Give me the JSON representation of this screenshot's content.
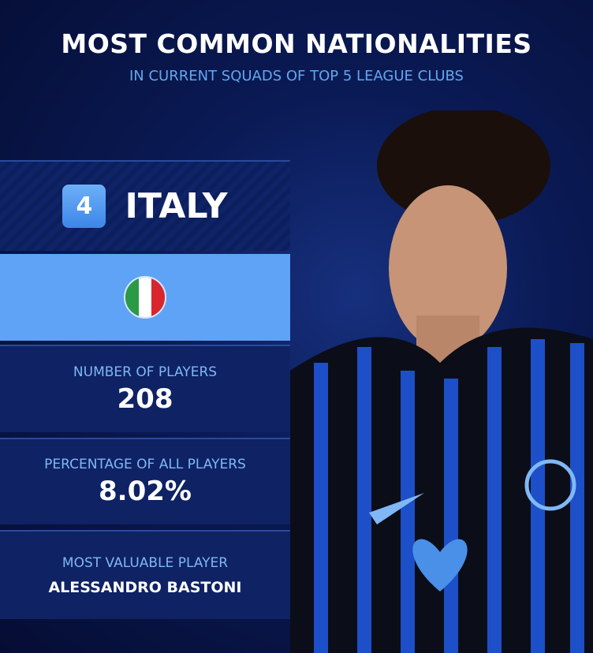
{
  "header": {
    "title": "MOST COMMON NATIONALITIES",
    "subtitle": "IN CURRENT SQUADS OF TOP 5 LEAGUE CLUBS"
  },
  "card": {
    "rank": "4",
    "country": "ITALY",
    "flag_icon": "italy-flag-icon",
    "flag_colors": [
      "#2a9a46",
      "#ffffff",
      "#d8262c"
    ]
  },
  "stats": [
    {
      "label": "NUMBER OF PLAYERS",
      "value": "208"
    },
    {
      "label": "PERCENTAGE OF ALL PLAYERS",
      "value": "8.02%"
    },
    {
      "label": "MOST VALUABLE PLAYER",
      "value": "ALESSANDRO BASTONI"
    }
  ],
  "colors": {
    "accent": "#5ea3f5",
    "panel": "#0e2264",
    "label": "#7fb8f5"
  }
}
